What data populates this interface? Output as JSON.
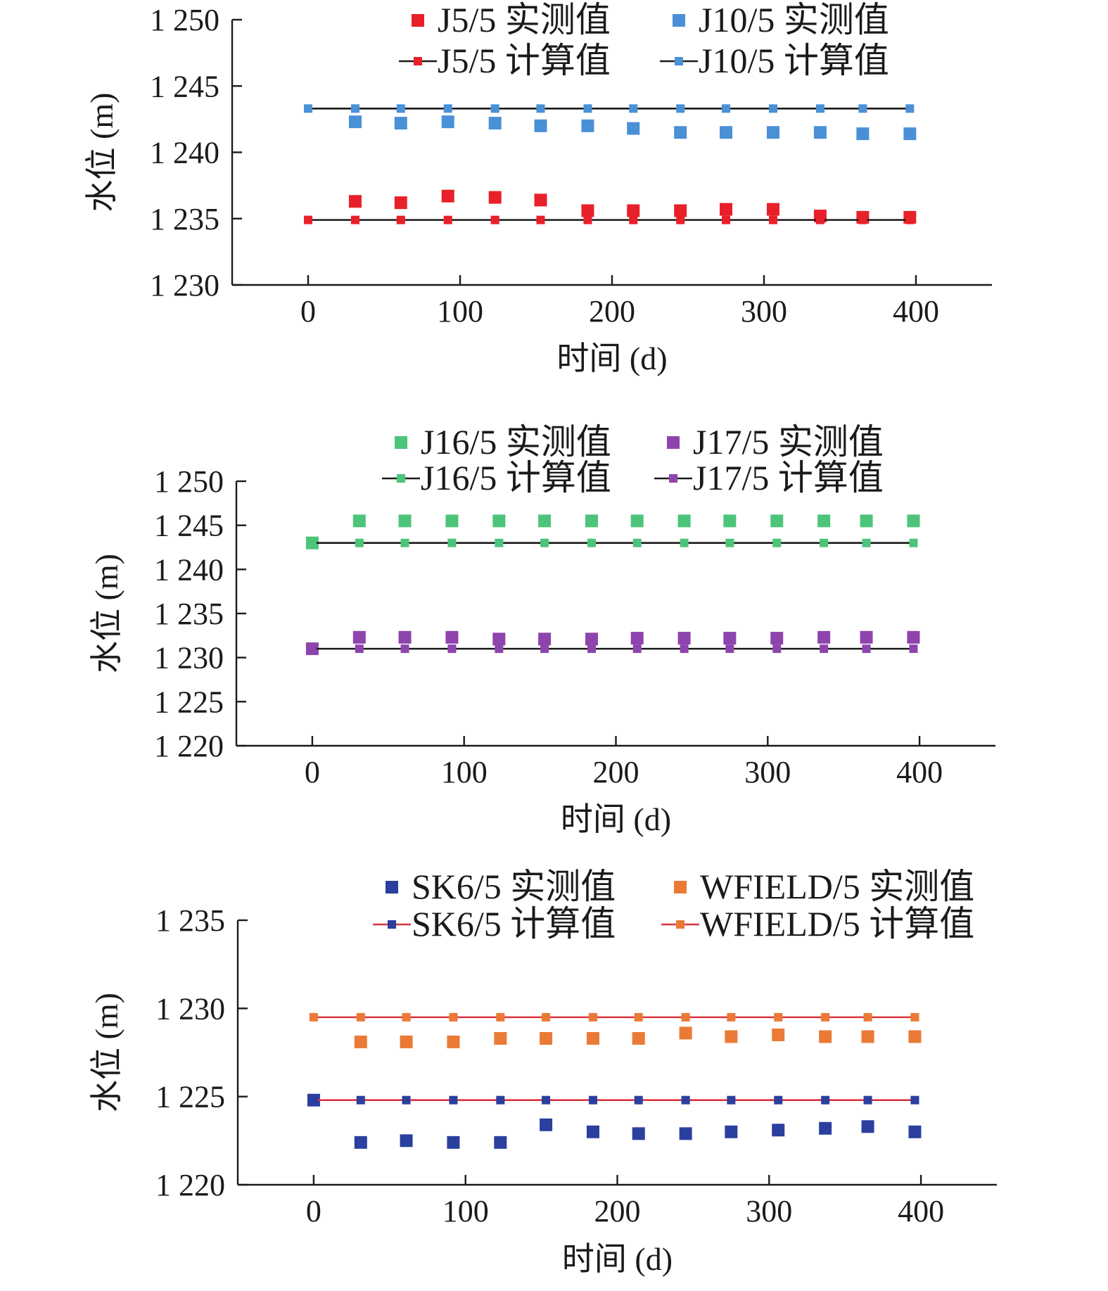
{
  "chart_data": [
    {
      "type": "scatter",
      "xlabel": "时间 (d)",
      "ylabel": "水位 (m)",
      "xlim": [
        -50,
        450
      ],
      "ylim": [
        1230,
        1250
      ],
      "xticks": [
        0,
        100,
        200,
        300,
        400
      ],
      "xtick_labels": [
        "0",
        "100",
        "200",
        "300",
        "400"
      ],
      "yticks": [
        1230,
        1235,
        1240,
        1245,
        1250
      ],
      "ytick_labels": [
        "1 230",
        "1 235",
        "1 240",
        "1 245",
        "1 250"
      ],
      "legend_position": "top-right",
      "series": [
        {
          "name": "J5/5 实测值",
          "kind": "measured",
          "color": "#e8202a",
          "line_color": "#1a1a1a",
          "x": [
            31,
            61,
            92,
            123,
            153,
            184,
            214,
            245,
            275,
            306,
            337,
            365,
            396
          ],
          "y": [
            1236.3,
            1236.2,
            1236.7,
            1236.6,
            1236.4,
            1235.6,
            1235.6,
            1235.6,
            1235.7,
            1235.7,
            1235.2,
            1235.1,
            1235.1
          ]
        },
        {
          "name": "J10/5 实测值",
          "kind": "measured",
          "color": "#4a90d6",
          "line_color": "#1a1a1a",
          "x": [
            31,
            61,
            92,
            123,
            153,
            184,
            214,
            245,
            275,
            306,
            337,
            365,
            396
          ],
          "y": [
            1242.3,
            1242.2,
            1242.3,
            1242.2,
            1242.0,
            1242.0,
            1241.8,
            1241.5,
            1241.5,
            1241.5,
            1241.5,
            1241.4,
            1241.4
          ]
        },
        {
          "name": "J5/5 计算值",
          "kind": "calculated",
          "color": "#e8202a",
          "line_color": "#1a1a1a",
          "x": [
            0,
            31,
            61,
            92,
            123,
            153,
            184,
            214,
            245,
            275,
            306,
            337,
            365,
            396
          ],
          "y": [
            1234.9,
            1234.9,
            1234.9,
            1234.9,
            1234.9,
            1234.9,
            1234.9,
            1234.9,
            1234.9,
            1234.9,
            1234.9,
            1234.9,
            1234.9,
            1234.9
          ]
        },
        {
          "name": "J10/5 计算值",
          "kind": "calculated",
          "color": "#4a90d6",
          "line_color": "#1a1a1a",
          "x": [
            0,
            31,
            61,
            92,
            123,
            153,
            184,
            214,
            245,
            275,
            306,
            337,
            365,
            396
          ],
          "y": [
            1243.3,
            1243.3,
            1243.3,
            1243.3,
            1243.3,
            1243.3,
            1243.3,
            1243.3,
            1243.3,
            1243.3,
            1243.3,
            1243.3,
            1243.3,
            1243.3
          ]
        }
      ]
    },
    {
      "type": "scatter",
      "xlabel": "时间 (d)",
      "ylabel": "水位 (m)",
      "xlim": [
        -50,
        450
      ],
      "ylim": [
        1220,
        1250
      ],
      "xticks": [
        0,
        100,
        200,
        300,
        400
      ],
      "xtick_labels": [
        "0",
        "100",
        "200",
        "300",
        "400"
      ],
      "yticks": [
        1220,
        1225,
        1230,
        1235,
        1240,
        1245,
        1250
      ],
      "ytick_labels": [
        "1 220",
        "1 225",
        "1 230",
        "1 235",
        "1 240",
        "1 245",
        "1 250"
      ],
      "legend_position": "top-right",
      "series": [
        {
          "name": "J16/5 实测值",
          "kind": "measured",
          "color": "#4cc47a",
          "line_color": "#1a1a1a",
          "x": [
            0,
            31,
            61,
            92,
            123,
            153,
            184,
            214,
            245,
            275,
            306,
            337,
            365,
            396
          ],
          "y": [
            1243.0,
            1245.5,
            1245.5,
            1245.5,
            1245.5,
            1245.5,
            1245.5,
            1245.5,
            1245.5,
            1245.5,
            1245.5,
            1245.5,
            1245.5,
            1245.5
          ]
        },
        {
          "name": "J17/5 实测值",
          "kind": "measured",
          "color": "#8e44ad",
          "line_color": "#1a1a1a",
          "x": [
            0,
            31,
            61,
            92,
            123,
            153,
            184,
            214,
            245,
            275,
            306,
            337,
            365,
            396
          ],
          "y": [
            1231.0,
            1232.3,
            1232.3,
            1232.3,
            1232.1,
            1232.1,
            1232.1,
            1232.2,
            1232.2,
            1232.2,
            1232.2,
            1232.3,
            1232.3,
            1232.3
          ]
        },
        {
          "name": "J16/5 计算值",
          "kind": "calculated",
          "color": "#4cc47a",
          "line_color": "#1a1a1a",
          "x": [
            0,
            31,
            61,
            92,
            123,
            153,
            184,
            214,
            245,
            275,
            306,
            337,
            365,
            396
          ],
          "y": [
            1243.0,
            1243.0,
            1243.0,
            1243.0,
            1243.0,
            1243.0,
            1243.0,
            1243.0,
            1243.0,
            1243.0,
            1243.0,
            1243.0,
            1243.0,
            1243.0
          ]
        },
        {
          "name": "J17/5 计算值",
          "kind": "calculated",
          "color": "#8e44ad",
          "line_color": "#1a1a1a",
          "x": [
            0,
            31,
            61,
            92,
            123,
            153,
            184,
            214,
            245,
            275,
            306,
            337,
            365,
            396
          ],
          "y": [
            1231.0,
            1231.0,
            1231.0,
            1231.0,
            1231.0,
            1231.0,
            1231.0,
            1231.0,
            1231.0,
            1231.0,
            1231.0,
            1231.0,
            1231.0,
            1231.0
          ]
        }
      ]
    },
    {
      "type": "scatter",
      "xlabel": "时间 (d)",
      "ylabel": "水位 (m)",
      "xlim": [
        -50,
        450
      ],
      "ylim": [
        1220,
        1235
      ],
      "xticks": [
        0,
        100,
        200,
        300,
        400
      ],
      "xtick_labels": [
        "0",
        "100",
        "200",
        "300",
        "400"
      ],
      "yticks": [
        1220,
        1225,
        1230,
        1235
      ],
      "ytick_labels": [
        "1 220",
        "1 225",
        "1 230",
        "1 235"
      ],
      "legend_position": "top-right",
      "series": [
        {
          "name": "SK6/5 实测值",
          "kind": "measured",
          "color": "#2b3f9e",
          "line_color": "#d9343f",
          "x": [
            0,
            31,
            61,
            92,
            123,
            153,
            184,
            214,
            245,
            275,
            306,
            337,
            365,
            396
          ],
          "y": [
            1224.8,
            1222.4,
            1222.5,
            1222.4,
            1222.4,
            1223.4,
            1223.0,
            1222.9,
            1222.9,
            1223.0,
            1223.1,
            1223.2,
            1223.3,
            1223.0
          ]
        },
        {
          "name": "WFIELD/5 实测值",
          "kind": "measured",
          "color": "#ea7a35",
          "line_color": "#d9343f",
          "x": [
            31,
            61,
            92,
            123,
            153,
            184,
            214,
            245,
            275,
            306,
            337,
            365,
            396
          ],
          "y": [
            1228.1,
            1228.1,
            1228.1,
            1228.3,
            1228.3,
            1228.3,
            1228.3,
            1228.6,
            1228.4,
            1228.5,
            1228.4,
            1228.4,
            1228.4
          ]
        },
        {
          "name": "SK6/5 计算值",
          "kind": "calculated",
          "color": "#2b3f9e",
          "line_color": "#d9343f",
          "x": [
            0,
            31,
            61,
            92,
            123,
            153,
            184,
            214,
            245,
            275,
            306,
            337,
            365,
            396
          ],
          "y": [
            1224.8,
            1224.8,
            1224.8,
            1224.8,
            1224.8,
            1224.8,
            1224.8,
            1224.8,
            1224.8,
            1224.8,
            1224.8,
            1224.8,
            1224.8,
            1224.8
          ]
        },
        {
          "name": "WFIELD/5 计算值",
          "kind": "calculated",
          "color": "#ea7a35",
          "line_color": "#d9343f",
          "x": [
            0,
            31,
            61,
            92,
            123,
            153,
            184,
            214,
            245,
            275,
            306,
            337,
            365,
            396
          ],
          "y": [
            1229.5,
            1229.5,
            1229.5,
            1229.5,
            1229.5,
            1229.5,
            1229.5,
            1229.5,
            1229.5,
            1229.5,
            1229.5,
            1229.5,
            1229.5,
            1229.5
          ]
        }
      ]
    }
  ]
}
